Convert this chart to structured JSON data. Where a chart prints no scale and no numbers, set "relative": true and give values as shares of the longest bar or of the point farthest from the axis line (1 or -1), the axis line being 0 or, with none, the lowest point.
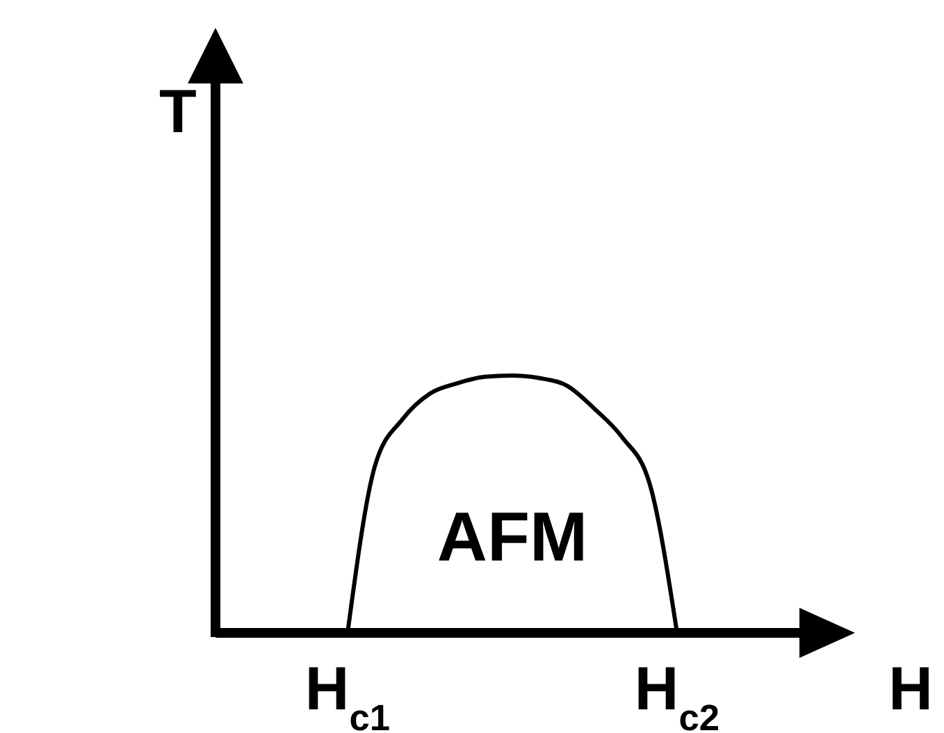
{
  "chart_data": {
    "type": "line",
    "relative": true,
    "xlabel": "H",
    "ylabel": "T",
    "categories": [
      "H$_{c1}$",
      null,
      null,
      null,
      null,
      null,
      null,
      null,
      null,
      null,
      null,
      null,
      "H$_{c2}$"
    ],
    "series": [
      {
        "color": "#000000",
        "values": [
          0,
          0.65,
          0.83,
          0.93,
          0.97,
          0.995,
          1.0,
          0.99,
          0.96,
          0.87,
          0.76,
          0.58,
          0
        ]
      }
    ],
    "annotations": [
      "AFM"
    ],
    "grid": false,
    "legend": false,
    "marker": "none",
    "line_style": "solid"
  }
}
